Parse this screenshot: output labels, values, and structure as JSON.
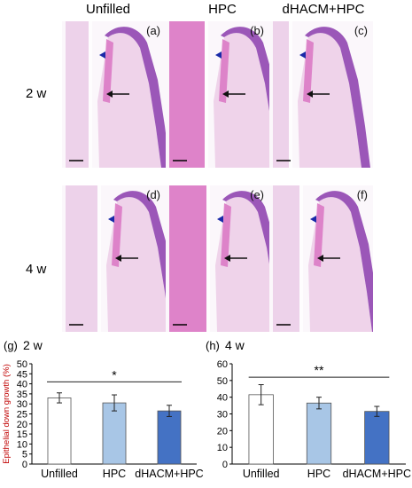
{
  "figure": {
    "columns": [
      "Unfilled",
      "HPC",
      "dHACM+HPC"
    ],
    "rows": [
      "2 w",
      "4 w"
    ],
    "panels": [
      "(a)",
      "(b)",
      "(c)",
      "(d)",
      "(e)",
      "(f)"
    ],
    "colors": {
      "tissue_pink": "#d86fc0",
      "tissue_purple": "#9b57b8",
      "pale_pink": "#efd3ea",
      "tooth_pink": "#e2b5dc",
      "background": "#fbf7fb",
      "arrowhead_blue": "#1a2aa8",
      "arrow_black": "#111111"
    }
  },
  "chart_data": [
    {
      "type": "bar",
      "panel_label": "(g)",
      "title": "2 w",
      "ylabel": "Epithelial down growth (%)",
      "categories": [
        "Unfilled",
        "HPC",
        "dHACM+HPC"
      ],
      "values": [
        33,
        30.5,
        26.5
      ],
      "errors": [
        2.5,
        4,
        2.8
      ],
      "colors": [
        "#ffffff",
        "#a8c6e6",
        "#4472c4"
      ],
      "ylim": [
        0,
        50
      ],
      "yticks": [
        "0",
        "5",
        "10",
        "15",
        "20",
        "25",
        "30",
        "35",
        "40",
        "45",
        "50"
      ],
      "significance": {
        "label": "*",
        "from": "Unfilled",
        "to": "dHACM+HPC",
        "y": 41
      }
    },
    {
      "type": "bar",
      "panel_label": "(h)",
      "title": "4 w",
      "categories": [
        "Unfilled",
        "HPC",
        "dHACM+HPC"
      ],
      "values": [
        41.5,
        36.5,
        31.5
      ],
      "errors": [
        6,
        3.5,
        3
      ],
      "colors": [
        "#ffffff",
        "#a8c6e6",
        "#4472c4"
      ],
      "ylim": [
        0,
        60
      ],
      "yticks": [
        "0",
        "10",
        "20",
        "30",
        "40",
        "50",
        "60"
      ],
      "significance": {
        "label": "**",
        "from": "Unfilled",
        "to": "dHACM+HPC",
        "y": 52
      }
    }
  ]
}
